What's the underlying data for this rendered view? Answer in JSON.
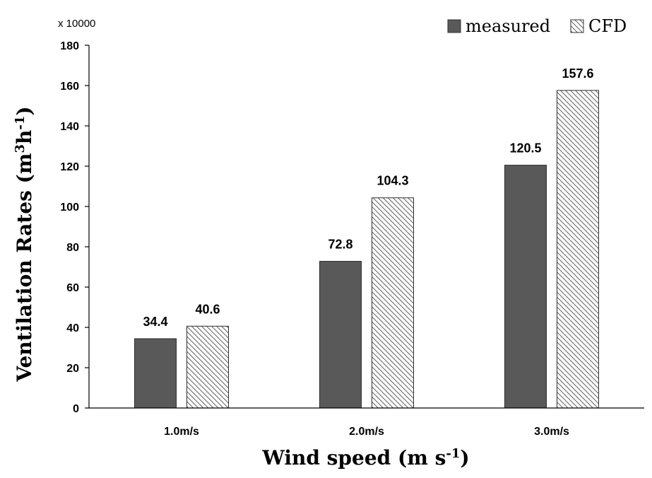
{
  "chart_data": {
    "type": "bar",
    "categories": [
      "1.0m/s",
      "2.0m/s",
      "3.0m/s"
    ],
    "series": [
      {
        "name": "measured",
        "values": [
          34.4,
          72.8,
          120.5
        ],
        "color": "#595959",
        "pattern": "solid"
      },
      {
        "name": "CFD",
        "values": [
          40.6,
          104.3,
          157.6
        ],
        "color": "#ffffff",
        "pattern": "diagonal-hatch"
      }
    ],
    "value_labels": [
      [
        "34.4",
        "72.8",
        "120.5"
      ],
      [
        "40.6",
        "104.3",
        "157.6"
      ]
    ],
    "xlabel": {
      "text": "Wind speed (m s",
      "sup": "-1",
      "tail": ")"
    },
    "ylabel": {
      "text": "Ventilation Rates (m",
      "sup1": "3",
      "mid": "h",
      "sup2": "-1",
      "tail": ")"
    },
    "scale_label": "x 10000",
    "ylim": [
      0,
      180
    ],
    "yticks": [
      0,
      20,
      40,
      60,
      80,
      100,
      120,
      140,
      160,
      180
    ],
    "legend_position": "top-right",
    "grid": false
  }
}
